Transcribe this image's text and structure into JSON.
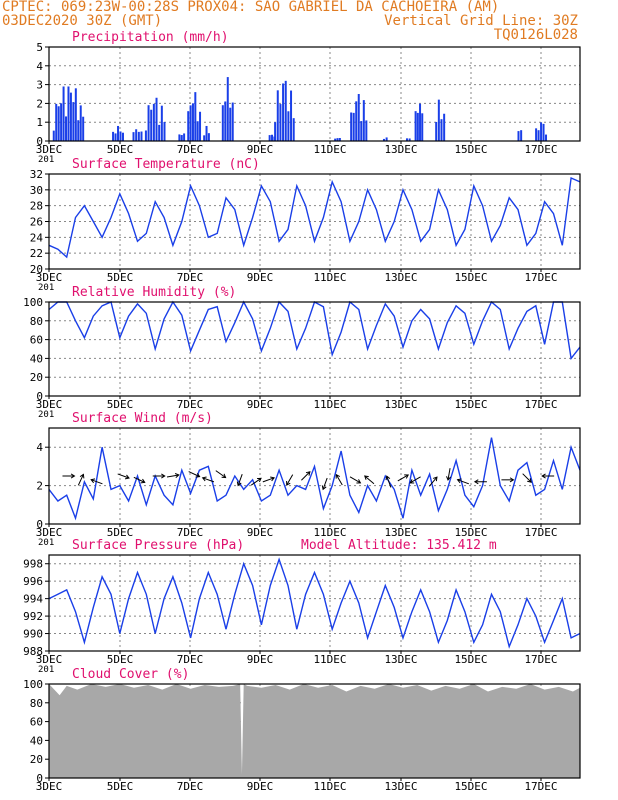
{
  "header": {
    "line1_left": "CPTEC:   069:23W-00:28S  PROX04: SAO GABRIEL DA CACHOEIRA (AM)",
    "line2_left": "03DEC2020 30Z (GMT)",
    "line2_right": "Vertical Grid Line: 30Z",
    "line3_right": "TQ0126L028"
  },
  "colors": {
    "header": "#e07b22",
    "panel_title": "#e0106e",
    "line": "#1a3fe8",
    "bar": "#1a3fe8",
    "cloud_fill": "#a8a8a8",
    "grid": "#888888",
    "frame": "#000000"
  },
  "x_axis": {
    "tick_labels": [
      "3DEC",
      "5DEC",
      "7DEC",
      "9DEC",
      "11DEC",
      "13DEC",
      "15DEC",
      "17DEC"
    ],
    "cut_label": "201"
  },
  "chart_data": [
    {
      "id": "precip",
      "type": "bar",
      "title": "Precipitation (mm/h)",
      "ylim": [
        0,
        5
      ],
      "yticks": [
        0,
        1,
        2,
        3,
        4,
        5
      ],
      "grid": true,
      "x_domain_days": [
        0,
        15
      ],
      "events": [
        {
          "x": 0.55,
          "w": 0.9,
          "peak": 2.9
        },
        {
          "x": 1.95,
          "w": 0.35,
          "peak": 0.8
        },
        {
          "x": 2.5,
          "w": 0.3,
          "peak": 0.7
        },
        {
          "x": 3.0,
          "w": 0.6,
          "peak": 2.3
        },
        {
          "x": 3.75,
          "w": 0.2,
          "peak": 0.5
        },
        {
          "x": 4.1,
          "w": 0.4,
          "peak": 2.6
        },
        {
          "x": 4.45,
          "w": 0.2,
          "peak": 0.8
        },
        {
          "x": 5.05,
          "w": 0.35,
          "peak": 3.4
        },
        {
          "x": 6.3,
          "w": 0.2,
          "peak": 0.4
        },
        {
          "x": 6.65,
          "w": 0.6,
          "peak": 3.2
        },
        {
          "x": 8.15,
          "w": 0.2,
          "peak": 0.2
        },
        {
          "x": 8.75,
          "w": 0.5,
          "peak": 2.5
        },
        {
          "x": 9.5,
          "w": 0.15,
          "peak": 0.2
        },
        {
          "x": 10.15,
          "w": 0.15,
          "peak": 0.2
        },
        {
          "x": 10.45,
          "w": 0.25,
          "peak": 2.2
        },
        {
          "x": 11.05,
          "w": 0.3,
          "peak": 2.2
        },
        {
          "x": 13.3,
          "w": 0.15,
          "peak": 0.8
        },
        {
          "x": 13.9,
          "w": 0.35,
          "peak": 1.0
        }
      ]
    },
    {
      "id": "temp",
      "type": "line",
      "title": "Surface Temperature (nC)",
      "ylim": [
        20,
        32
      ],
      "yticks": [
        20,
        22,
        24,
        26,
        28,
        30,
        32
      ],
      "grid": true,
      "x_domain_days": [
        0,
        15
      ],
      "x": [
        0.0,
        0.25,
        0.5,
        0.75,
        1.0,
        1.25,
        1.5,
        1.75,
        2.0,
        2.25,
        2.5,
        2.75,
        3.0,
        3.25,
        3.5,
        3.75,
        4.0,
        4.25,
        4.5,
        4.75,
        5.0,
        5.25,
        5.5,
        5.75,
        6.0,
        6.25,
        6.5,
        6.75,
        7.0,
        7.25,
        7.5,
        7.75,
        8.0,
        8.25,
        8.5,
        8.75,
        9.0,
        9.25,
        9.5,
        9.75,
        10.0,
        10.25,
        10.5,
        10.75,
        11.0,
        11.25,
        11.5,
        11.75,
        12.0,
        12.25,
        12.5,
        12.75,
        13.0,
        13.25,
        13.5,
        13.75,
        14.0,
        14.25,
        14.5,
        14.75,
        15.0
      ],
      "values": [
        23.0,
        22.5,
        21.5,
        26.5,
        28.0,
        26.0,
        24.0,
        26.5,
        29.5,
        27.0,
        23.5,
        24.5,
        28.5,
        26.5,
        23.0,
        26.0,
        30.5,
        28.0,
        24.0,
        24.5,
        29.0,
        27.5,
        23.0,
        26.5,
        30.5,
        28.5,
        23.5,
        25.0,
        30.5,
        28.0,
        23.5,
        26.5,
        31.0,
        28.5,
        23.5,
        26.0,
        30.0,
        27.5,
        23.5,
        26.0,
        30.0,
        27.5,
        23.5,
        25.0,
        30.0,
        27.5,
        23.0,
        25.0,
        30.5,
        28.0,
        23.5,
        25.5,
        29.0,
        27.5,
        23.0,
        24.5,
        28.5,
        27.0,
        23.0,
        31.5,
        31.0
      ]
    },
    {
      "id": "rh",
      "type": "line",
      "title": "Relative Humidity (%)",
      "ylim": [
        0,
        100
      ],
      "yticks": [
        0,
        20,
        40,
        60,
        80,
        100
      ],
      "grid": true,
      "x_domain_days": [
        0,
        15
      ],
      "x": [
        0.0,
        0.25,
        0.5,
        0.75,
        1.0,
        1.25,
        1.5,
        1.75,
        2.0,
        2.25,
        2.5,
        2.75,
        3.0,
        3.25,
        3.5,
        3.75,
        4.0,
        4.25,
        4.5,
        4.75,
        5.0,
        5.25,
        5.5,
        5.75,
        6.0,
        6.25,
        6.5,
        6.75,
        7.0,
        7.25,
        7.5,
        7.75,
        8.0,
        8.25,
        8.5,
        8.75,
        9.0,
        9.25,
        9.5,
        9.75,
        10.0,
        10.25,
        10.5,
        10.75,
        11.0,
        11.25,
        11.5,
        11.75,
        12.0,
        12.25,
        12.5,
        12.75,
        13.0,
        13.25,
        13.5,
        13.75,
        14.0,
        14.25,
        14.5,
        14.75,
        15.0
      ],
      "values": [
        92,
        100,
        100,
        80,
        62,
        85,
        96,
        100,
        62,
        85,
        98,
        88,
        50,
        82,
        100,
        86,
        48,
        70,
        92,
        95,
        58,
        78,
        100,
        82,
        48,
        72,
        100,
        90,
        50,
        72,
        100,
        95,
        44,
        68,
        100,
        92,
        50,
        75,
        98,
        85,
        52,
        80,
        92,
        82,
        50,
        78,
        96,
        88,
        55,
        80,
        100,
        92,
        50,
        72,
        90,
        96,
        55,
        100,
        100,
        40,
        52
      ]
    },
    {
      "id": "wind",
      "type": "line",
      "title": "Surface Wind (m/s)",
      "ylim": [
        0,
        5
      ],
      "yticks": [
        0,
        2,
        4
      ],
      "grid": true,
      "x_domain_days": [
        0,
        15
      ],
      "x": [
        0.0,
        0.25,
        0.5,
        0.75,
        1.0,
        1.25,
        1.5,
        1.75,
        2.0,
        2.25,
        2.5,
        2.75,
        3.0,
        3.25,
        3.5,
        3.75,
        4.0,
        4.25,
        4.5,
        4.75,
        5.0,
        5.25,
        5.5,
        5.75,
        6.0,
        6.25,
        6.5,
        6.75,
        7.0,
        7.25,
        7.5,
        7.75,
        8.0,
        8.25,
        8.5,
        8.75,
        9.0,
        9.25,
        9.5,
        9.75,
        10.0,
        10.25,
        10.5,
        10.75,
        11.0,
        11.25,
        11.5,
        11.75,
        12.0,
        12.25,
        12.5,
        12.75,
        13.0,
        13.25,
        13.5,
        13.75,
        14.0,
        14.25,
        14.5,
        14.75,
        15.0
      ],
      "values": [
        1.8,
        1.2,
        1.5,
        0.3,
        2.2,
        1.3,
        4.0,
        1.8,
        2.0,
        1.2,
        2.5,
        1.0,
        2.5,
        1.5,
        1.0,
        2.8,
        1.6,
        2.8,
        3.0,
        1.2,
        1.5,
        2.5,
        1.8,
        2.3,
        1.2,
        1.5,
        2.8,
        1.5,
        2.0,
        1.8,
        3.0,
        0.8,
        2.0,
        3.8,
        1.5,
        0.6,
        2.0,
        1.2,
        2.5,
        1.8,
        0.3,
        2.8,
        1.5,
        2.6,
        0.7,
        1.8,
        3.3,
        1.5,
        0.9,
        2.0,
        4.5,
        2.0,
        1.2,
        2.8,
        3.2,
        1.5,
        1.8,
        3.3,
        1.8,
        4.0,
        2.8
      ],
      "arrows": [
        {
          "x": 0.55,
          "v": 2.5,
          "angle": 0
        },
        {
          "x": 0.9,
          "v": 2.3,
          "angle": 65
        },
        {
          "x": 1.35,
          "v": 2.2,
          "angle": 160
        },
        {
          "x": 2.1,
          "v": 2.5,
          "angle": -20
        },
        {
          "x": 2.55,
          "v": 2.3,
          "angle": -25
        },
        {
          "x": 3.1,
          "v": 2.5,
          "angle": 0
        },
        {
          "x": 3.5,
          "v": 2.5,
          "angle": 10
        },
        {
          "x": 4.1,
          "v": 2.6,
          "angle": -25
        },
        {
          "x": 4.5,
          "v": 2.3,
          "angle": 160
        },
        {
          "x": 4.85,
          "v": 2.6,
          "angle": -35
        },
        {
          "x": 5.4,
          "v": 2.3,
          "angle": -110
        },
        {
          "x": 5.85,
          "v": 2.2,
          "angle": 35
        },
        {
          "x": 6.2,
          "v": 2.3,
          "angle": 20
        },
        {
          "x": 6.8,
          "v": 2.3,
          "angle": -120
        },
        {
          "x": 7.25,
          "v": 2.5,
          "angle": 45
        },
        {
          "x": 7.8,
          "v": 2.1,
          "angle": -110
        },
        {
          "x": 8.2,
          "v": 2.3,
          "angle": 120
        },
        {
          "x": 8.65,
          "v": 2.3,
          "angle": -30
        },
        {
          "x": 9.05,
          "v": 2.3,
          "angle": 140
        },
        {
          "x": 9.6,
          "v": 2.2,
          "angle": 110
        },
        {
          "x": 10.0,
          "v": 2.4,
          "angle": 30
        },
        {
          "x": 10.35,
          "v": 2.3,
          "angle": -150
        },
        {
          "x": 10.85,
          "v": 2.2,
          "angle": 50
        },
        {
          "x": 11.3,
          "v": 2.6,
          "angle": -100
        },
        {
          "x": 11.7,
          "v": 2.2,
          "angle": 160
        },
        {
          "x": 12.2,
          "v": 2.2,
          "angle": 180
        },
        {
          "x": 12.95,
          "v": 2.3,
          "angle": 0
        },
        {
          "x": 13.5,
          "v": 2.4,
          "angle": -45
        },
        {
          "x": 14.1,
          "v": 2.5,
          "angle": 180
        }
      ]
    },
    {
      "id": "pres",
      "type": "line",
      "title": "Surface Pressure (hPa)",
      "annotation": "Model Altitude: 135.412 m",
      "ylim": [
        988,
        999
      ],
      "yticks": [
        988,
        990,
        992,
        994,
        996,
        998
      ],
      "grid": true,
      "x_domain_days": [
        0,
        15
      ],
      "x": [
        0.0,
        0.25,
        0.5,
        0.75,
        1.0,
        1.25,
        1.5,
        1.75,
        2.0,
        2.25,
        2.5,
        2.75,
        3.0,
        3.25,
        3.5,
        3.75,
        4.0,
        4.25,
        4.5,
        4.75,
        5.0,
        5.25,
        5.5,
        5.75,
        6.0,
        6.25,
        6.5,
        6.75,
        7.0,
        7.25,
        7.5,
        7.75,
        8.0,
        8.25,
        8.5,
        8.75,
        9.0,
        9.25,
        9.5,
        9.75,
        10.0,
        10.25,
        10.5,
        10.75,
        11.0,
        11.25,
        11.5,
        11.75,
        12.0,
        12.25,
        12.5,
        12.75,
        13.0,
        13.25,
        13.5,
        13.75,
        14.0,
        14.25,
        14.5,
        14.75,
        15.0
      ],
      "values": [
        994.0,
        994.5,
        995.0,
        992.5,
        989.0,
        993.0,
        996.5,
        994.5,
        990.0,
        994.0,
        997.0,
        994.5,
        990.0,
        994.0,
        996.5,
        993.5,
        989.5,
        994.0,
        997.0,
        994.5,
        990.5,
        994.5,
        998.0,
        995.5,
        991.0,
        995.5,
        998.5,
        995.5,
        990.5,
        994.5,
        997.0,
        994.5,
        990.5,
        993.5,
        996.0,
        993.5,
        989.5,
        992.5,
        995.5,
        993.0,
        989.5,
        992.5,
        995.0,
        992.5,
        989.0,
        991.5,
        995.0,
        992.5,
        989.0,
        991.0,
        994.5,
        992.5,
        988.5,
        991.0,
        994.0,
        992.0,
        989.0,
        991.5,
        994.0,
        989.5,
        990.0
      ]
    },
    {
      "id": "cloud",
      "type": "area",
      "title": "Cloud Cover (%)",
      "ylim": [
        0,
        100
      ],
      "yticks": [
        0,
        20,
        40,
        60,
        80,
        100
      ],
      "grid": true,
      "x_domain_days": [
        0,
        15
      ],
      "x": [
        0.0,
        0.1,
        0.3,
        0.5,
        0.8,
        1.2,
        1.6,
        2.0,
        2.4,
        2.8,
        3.2,
        3.6,
        4.0,
        4.4,
        4.8,
        5.2,
        5.4,
        5.45,
        5.5,
        5.6,
        6.0,
        6.4,
        6.8,
        7.2,
        7.6,
        8.0,
        8.4,
        8.8,
        9.2,
        9.6,
        10.0,
        10.4,
        10.8,
        11.2,
        11.6,
        12.0,
        12.4,
        12.8,
        13.2,
        13.6,
        14.0,
        14.4,
        14.8,
        15.0
      ],
      "values": [
        100,
        96,
        88,
        98,
        94,
        100,
        97,
        100,
        96,
        99,
        94,
        100,
        95,
        99,
        97,
        98,
        100,
        4,
        100,
        98,
        96,
        99,
        94,
        100,
        96,
        99,
        92,
        98,
        95,
        100,
        96,
        99,
        93,
        98,
        95,
        100,
        92,
        97,
        95,
        100,
        94,
        97,
        92,
        96
      ]
    }
  ]
}
